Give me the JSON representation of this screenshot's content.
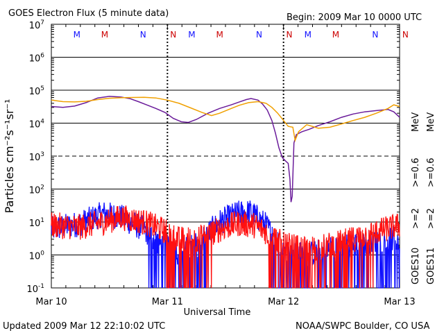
{
  "header": {
    "title": "GOES Electron Flux (5 minute data)",
    "begin": "Begin: 2009 Mar 10 0000 UTC"
  },
  "footer": {
    "updated": "Updated 2009 Mar 12 22:10:02 UTC",
    "credit": "NOAA/SWPC Boulder, CO USA"
  },
  "colors": {
    "goes10_2mev": "#1010ff",
    "goes10_06mev": "#6a1b9a",
    "goes11_2mev": "#ff1010",
    "goes11_06mev": "#f0a000",
    "M": "#cc0000",
    "N": "#0000cc"
  },
  "chart_data": {
    "type": "line",
    "title": "GOES Electron Flux (5 minute data)",
    "xlabel": "Universal Time",
    "ylabel": "Particles cm⁻²s⁻¹sr⁻¹",
    "y_scale": "log",
    "ylim": [
      0.1,
      10000000
    ],
    "y_ticks": [
      {
        "base": "10",
        "exp": "-1"
      },
      {
        "base": "10",
        "exp": "0"
      },
      {
        "base": "10",
        "exp": "1"
      },
      {
        "base": "10",
        "exp": "2"
      },
      {
        "base": "10",
        "exp": "3"
      },
      {
        "base": "10",
        "exp": "4"
      },
      {
        "base": "10",
        "exp": "5"
      },
      {
        "base": "10",
        "exp": "6"
      },
      {
        "base": "10",
        "exp": "7"
      }
    ],
    "x_ticks": [
      "Mar 10",
      "Mar 11",
      "Mar 12",
      "Mar 13"
    ],
    "reference_lines": [
      {
        "value": 1000000,
        "style": "solid"
      },
      {
        "value": 100000,
        "style": "solid"
      },
      {
        "value": 10000,
        "style": "solid"
      },
      {
        "value": 1000,
        "style": "dashed"
      },
      {
        "value": 100,
        "style": "solid"
      },
      {
        "value": 10,
        "style": "solid"
      },
      {
        "value": 1,
        "style": "solid"
      }
    ],
    "legend": {
      "placement": "right",
      "goes10": "GOES10",
      "goes11": "GOES11",
      "entries": [
        {
          "text": ">=2",
          "color": "#1010ff"
        },
        {
          "text": ">=0.6",
          "color": "#6a1b9a"
        },
        {
          "text": ">=2",
          "color": "#ff1010"
        },
        {
          "text": ">=0.6",
          "color": "#f0a000"
        }
      ],
      "unit": "MeV"
    },
    "local_time_markers": [
      {
        "day": 0.22,
        "label": "M",
        "color": "#1010ff"
      },
      {
        "day": 0.46,
        "label": "M",
        "color": "#cc0000"
      },
      {
        "day": 0.79,
        "label": "N",
        "color": "#1010ff"
      },
      {
        "day": 1.05,
        "label": "N",
        "color": "#cc0000"
      },
      {
        "day": 1.21,
        "label": "M",
        "color": "#1010ff"
      },
      {
        "day": 1.45,
        "label": "M",
        "color": "#cc0000"
      },
      {
        "day": 1.79,
        "label": "N",
        "color": "#1010ff"
      },
      {
        "day": 2.05,
        "label": "N",
        "color": "#cc0000"
      },
      {
        "day": 2.21,
        "label": "M",
        "color": "#1010ff"
      },
      {
        "day": 2.45,
        "label": "M",
        "color": "#cc0000"
      },
      {
        "day": 2.79,
        "label": "N",
        "color": "#1010ff"
      },
      {
        "day": 3.05,
        "label": "N",
        "color": "#cc0000"
      }
    ],
    "series": [
      {
        "name": "GOES10 >=0.6 MeV",
        "color": "#6a1b9a",
        "points": [
          [
            0.0,
            32000
          ],
          [
            0.1,
            30000
          ],
          [
            0.2,
            33000
          ],
          [
            0.3,
            42000
          ],
          [
            0.4,
            58000
          ],
          [
            0.5,
            65000
          ],
          [
            0.6,
            62000
          ],
          [
            0.68,
            55000
          ],
          [
            0.75,
            45000
          ],
          [
            0.82,
            36000
          ],
          [
            0.9,
            28000
          ],
          [
            0.98,
            21000
          ],
          [
            1.05,
            14000
          ],
          [
            1.12,
            11000
          ],
          [
            1.18,
            10500
          ],
          [
            1.25,
            13000
          ],
          [
            1.35,
            20000
          ],
          [
            1.45,
            28000
          ],
          [
            1.55,
            36000
          ],
          [
            1.62,
            44000
          ],
          [
            1.68,
            52000
          ],
          [
            1.72,
            56000
          ],
          [
            1.78,
            50000
          ],
          [
            1.82,
            38000
          ],
          [
            1.86,
            25000
          ],
          [
            1.9,
            12000
          ],
          [
            1.93,
            5000
          ],
          [
            1.96,
            1800
          ],
          [
            1.99,
            900
          ],
          [
            2.02,
            700
          ],
          [
            2.04,
            600
          ],
          [
            2.055,
            200
          ],
          [
            2.065,
            40
          ],
          [
            2.075,
            60
          ],
          [
            2.09,
            2500
          ],
          [
            2.11,
            4500
          ],
          [
            2.16,
            5500
          ],
          [
            2.22,
            6500
          ],
          [
            2.3,
            8500
          ],
          [
            2.4,
            11000
          ],
          [
            2.5,
            15000
          ],
          [
            2.6,
            19000
          ],
          [
            2.7,
            22000
          ],
          [
            2.8,
            24000
          ],
          [
            2.9,
            26000
          ],
          [
            2.95,
            22000
          ],
          [
            3.0,
            15000
          ]
        ]
      },
      {
        "name": "GOES11 >=0.6 MeV",
        "color": "#f0a000",
        "points": [
          [
            0.0,
            50000
          ],
          [
            0.1,
            45000
          ],
          [
            0.2,
            44000
          ],
          [
            0.3,
            46000
          ],
          [
            0.4,
            52000
          ],
          [
            0.5,
            57000
          ],
          [
            0.6,
            59000
          ],
          [
            0.7,
            60000
          ],
          [
            0.8,
            61000
          ],
          [
            0.9,
            58000
          ],
          [
            1.0,
            50000
          ],
          [
            1.1,
            40000
          ],
          [
            1.2,
            29000
          ],
          [
            1.3,
            21000
          ],
          [
            1.38,
            17000
          ],
          [
            1.45,
            20000
          ],
          [
            1.55,
            28000
          ],
          [
            1.62,
            35000
          ],
          [
            1.7,
            42000
          ],
          [
            1.78,
            45000
          ],
          [
            1.85,
            40000
          ],
          [
            1.9,
            30000
          ],
          [
            1.95,
            20000
          ],
          [
            2.0,
            12000
          ],
          [
            2.04,
            8000
          ],
          [
            2.08,
            7500
          ],
          [
            2.1,
            3000
          ],
          [
            2.13,
            5500
          ],
          [
            2.2,
            9000
          ],
          [
            2.3,
            7000
          ],
          [
            2.4,
            7500
          ],
          [
            2.5,
            9500
          ],
          [
            2.6,
            12000
          ],
          [
            2.7,
            15000
          ],
          [
            2.8,
            20000
          ],
          [
            2.9,
            28000
          ],
          [
            2.95,
            36000
          ],
          [
            3.0,
            32000
          ]
        ]
      }
    ],
    "noisy_series": [
      {
        "name": "GOES10 >=2 MeV",
        "color": "#1010ff",
        "trend": [
          [
            0.0,
            6
          ],
          [
            0.25,
            9
          ],
          [
            0.45,
            18
          ],
          [
            0.6,
            14
          ],
          [
            0.8,
            6
          ],
          [
            0.95,
            2
          ],
          [
            1.1,
            1.2
          ],
          [
            1.25,
            2
          ],
          [
            1.45,
            10
          ],
          [
            1.6,
            18
          ],
          [
            1.72,
            20
          ],
          [
            1.85,
            8
          ],
          [
            2.0,
            1.2
          ],
          [
            2.2,
            1.0
          ],
          [
            2.4,
            1.5
          ],
          [
            2.6,
            2
          ],
          [
            2.8,
            3
          ],
          [
            3.0,
            3
          ]
        ]
      },
      {
        "name": "GOES11 >=2 MeV",
        "color": "#ff1010",
        "trend": [
          [
            0.0,
            8
          ],
          [
            0.25,
            7
          ],
          [
            0.45,
            10
          ],
          [
            0.6,
            14
          ],
          [
            0.8,
            10
          ],
          [
            0.95,
            6
          ],
          [
            1.1,
            3
          ],
          [
            1.25,
            3
          ],
          [
            1.45,
            6
          ],
          [
            1.6,
            9
          ],
          [
            1.75,
            8
          ],
          [
            1.9,
            4
          ],
          [
            2.0,
            2
          ],
          [
            2.2,
            1.5
          ],
          [
            2.4,
            2
          ],
          [
            2.6,
            3
          ],
          [
            2.8,
            5
          ],
          [
            3.0,
            8
          ]
        ]
      }
    ]
  }
}
